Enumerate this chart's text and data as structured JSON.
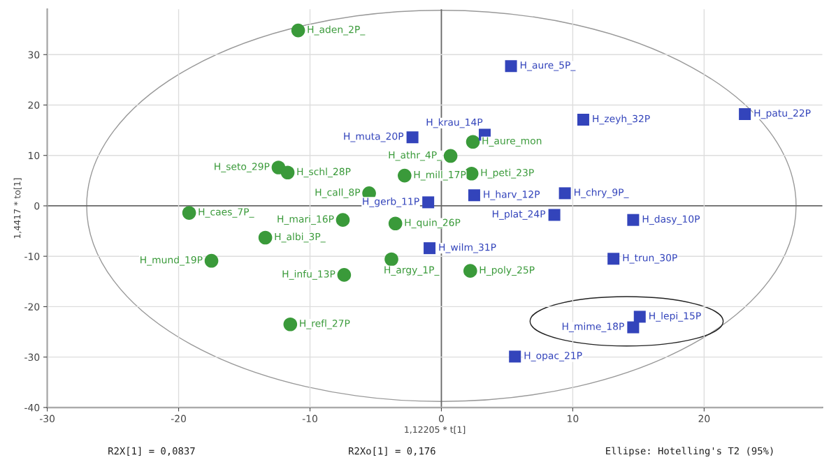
{
  "chart_data": {
    "type": "scatter",
    "xlabel": "1,12205 * t[1]",
    "ylabel": "1,4417 * to[1]",
    "xlim": [
      -30,
      29
    ],
    "ylim": [
      -40,
      39
    ],
    "xticks": [
      -30,
      -20,
      -10,
      0,
      10,
      20
    ],
    "yticks": [
      -40,
      -30,
      -20,
      -10,
      0,
      10,
      20,
      30
    ],
    "grid": true,
    "legend": false,
    "series": [
      {
        "color": "#3a9a3a",
        "marker": "circle",
        "x": [
          -10.9,
          -12.4,
          -11.7,
          0.7,
          2.4,
          -2.8,
          2.3,
          -5.5,
          -19.2,
          -7.5,
          -3.5,
          -13.4,
          -17.5,
          -7.4,
          -3.8,
          2.2,
          -11.5
        ],
        "values": [
          34.8,
          7.6,
          6.6,
          9.9,
          12.7,
          6.0,
          6.4,
          2.5,
          -1.4,
          -2.8,
          -3.5,
          -6.3,
          -10.9,
          -13.7,
          -10.6,
          -12.9,
          -23.5
        ]
      },
      {
        "color": "#3344bb",
        "marker": "square",
        "x": [
          -2.2,
          5.3,
          3.3,
          10.8,
          23.1,
          -1.0,
          2.5,
          9.4,
          8.6,
          14.6,
          -0.9,
          13.1,
          15.1,
          14.6,
          5.6
        ],
        "values": [
          13.6,
          27.7,
          14.1,
          17.1,
          18.2,
          0.7,
          2.1,
          2.5,
          -1.8,
          -2.8,
          -8.4,
          -10.5,
          -22.0,
          -24.1,
          -29.9
        ]
      }
    ],
    "annotations": [
      {
        "text": "H_aden_2P_",
        "x": -10.9,
        "y": 34.8
      },
      {
        "text": "H_seto_29P",
        "x": -12.4,
        "y": 7.6
      },
      {
        "text": "H_schl_28P",
        "x": -11.7,
        "y": 6.6
      },
      {
        "text": "H_athr_4P_",
        "x": 0.7,
        "y": 9.9
      },
      {
        "text": "H_aure_mon",
        "x": 2.4,
        "y": 12.7
      },
      {
        "text": "H_mill_17P",
        "x": -2.8,
        "y": 6.0
      },
      {
        "text": "H_peti_23P",
        "x": 2.3,
        "y": 6.4
      },
      {
        "text": "H_call_8P",
        "x": -5.5,
        "y": 2.5
      },
      {
        "text": "H_caes_7P_",
        "x": -19.2,
        "y": -1.4
      },
      {
        "text": "H_mari_16P",
        "x": -7.5,
        "y": -2.8
      },
      {
        "text": "H_quin_26P",
        "x": -3.5,
        "y": -3.5
      },
      {
        "text": "H_albi_3P_",
        "x": -13.4,
        "y": -6.3
      },
      {
        "text": "H_mund_19P",
        "x": -17.5,
        "y": -10.9
      },
      {
        "text": "H_infu_13P",
        "x": -7.4,
        "y": -13.7
      },
      {
        "text": "H_argy_1P_",
        "x": -3.8,
        "y": -10.6
      },
      {
        "text": "H_poly_25P",
        "x": 2.2,
        "y": -12.9
      },
      {
        "text": "H_refl_27P",
        "x": -11.5,
        "y": -23.5
      },
      {
        "text": "H_muta_20P",
        "x": -2.2,
        "y": 13.6
      },
      {
        "text": "H_aure_5P_",
        "x": 5.3,
        "y": 27.7
      },
      {
        "text": "H_krau_14P",
        "x": 3.3,
        "y": 14.1
      },
      {
        "text": "H_zeyh_32P",
        "x": 10.8,
        "y": 17.1
      },
      {
        "text": "H_patu_22P",
        "x": 23.1,
        "y": 18.2
      },
      {
        "text": "H_gerb_11P",
        "x": -1.0,
        "y": 0.7
      },
      {
        "text": "H_harv_12P",
        "x": 2.5,
        "y": 2.1
      },
      {
        "text": "H_chry_9P_",
        "x": 9.4,
        "y": 2.5
      },
      {
        "text": "H_plat_24P",
        "x": 8.6,
        "y": -1.8
      },
      {
        "text": "H_dasy_10P",
        "x": 14.6,
        "y": -2.8
      },
      {
        "text": "H_wilm_31P",
        "x": -0.9,
        "y": -8.4
      },
      {
        "text": "H_trun_30P",
        "x": 13.1,
        "y": -10.5
      },
      {
        "text": "H_lepi_15P",
        "x": 15.1,
        "y": -22.0
      },
      {
        "text": "H_mime_18P",
        "x": 14.6,
        "y": -24.1
      },
      {
        "text": "H_opac_21P",
        "x": 5.6,
        "y": -29.9
      },
      "R2X[1] = 0,0837",
      "R2Xo[1] = 0,176",
      "Ellipse: Hotelling's T2 (95%)"
    ]
  }
}
